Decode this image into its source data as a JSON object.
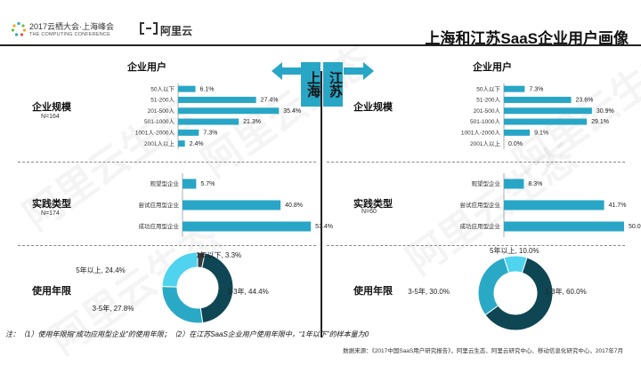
{
  "header": {
    "event_name": "2017云栖大会·上海峰会",
    "event_sub": "THE COMPUTING CONFERENCE",
    "brand": "阿里云",
    "title": "上海和江苏SaaS企业用户画像"
  },
  "watermark": "阿里云生态",
  "regions": {
    "left": "上海",
    "right": "江苏"
  },
  "column_head": "企业用户",
  "sections": {
    "scale": "企业规模",
    "practice": "实践类型",
    "years": "使用年限"
  },
  "colors": {
    "accent": "#29a6c6",
    "dark": "#0f4654",
    "mid": "#2aa9c7",
    "light": "#4fd3ee"
  },
  "chart_data": [
    {
      "id": "sh-scale",
      "type": "bar",
      "orientation": "horizontal",
      "region": "上海",
      "n_label": "N=164",
      "categories": [
        "50人以下",
        "51-200人",
        "201-500人",
        "501-1000人",
        "1001人-2000人",
        "2001人以上"
      ],
      "values": [
        6.1,
        27.4,
        35.4,
        21.3,
        7.3,
        2.4
      ],
      "labels": [
        "6.1%",
        "27.4%",
        "35.4%",
        "21.3%",
        "7.3%",
        "2.4%"
      ]
    },
    {
      "id": "js-scale",
      "type": "bar",
      "orientation": "horizontal",
      "region": "江苏",
      "categories": [
        "50人以下",
        "51-200人",
        "201-500人",
        "501-1000人",
        "1001人-2000人",
        "2001人以上"
      ],
      "values": [
        7.3,
        23.6,
        30.9,
        29.1,
        9.1,
        0.0
      ],
      "labels": [
        "7.3%",
        "23.6%",
        "30.9%",
        "29.1%",
        "9.1%",
        "0.0%"
      ]
    },
    {
      "id": "sh-practice",
      "type": "bar",
      "orientation": "horizontal",
      "region": "上海",
      "n_label": "N=174",
      "categories": [
        "观望型企业",
        "尝试应用型企业",
        "成功应用型企业"
      ],
      "values": [
        5.7,
        40.8,
        53.4
      ],
      "labels": [
        "5.7%",
        "40.8%",
        "53.4%"
      ]
    },
    {
      "id": "js-practice",
      "type": "bar",
      "orientation": "horizontal",
      "region": "江苏",
      "n_label": "N=60",
      "categories": [
        "观望型企业",
        "尝试应用型企业",
        "成功应用型企业"
      ],
      "values": [
        8.3,
        41.7,
        50.0
      ],
      "labels": [
        "8.3%",
        "41.7%",
        "50.0%"
      ]
    },
    {
      "id": "sh-years",
      "type": "pie",
      "variant": "donut",
      "region": "上海",
      "categories": [
        "1年以下",
        "1-3年",
        "3-5年",
        "5年以上"
      ],
      "values": [
        3.3,
        44.4,
        27.8,
        24.4
      ],
      "labels": [
        "1年以下, 3.3%",
        "1-3年, 44.4%",
        "3-5年, 27.8%",
        "5年以上, 24.4%"
      ],
      "colors": [
        "#3a3a3a",
        "#0f4654",
        "#2aa9c7",
        "#4fd3ee"
      ]
    },
    {
      "id": "js-years",
      "type": "pie",
      "variant": "donut",
      "region": "江苏",
      "categories": [
        "5年以上",
        "1-3年",
        "3-5年"
      ],
      "values": [
        10.0,
        60.0,
        30.0
      ],
      "labels": [
        "5年以上, 10.0%",
        "1-3年, 60.0%",
        "3-5年, 30.0%"
      ],
      "colors": [
        "#4fd3ee",
        "#0f4654",
        "#2aa9c7"
      ]
    }
  ],
  "footnote": "注：（1）使用年限指“成功应用型企业”的使用年限；（2）在江苏SaaS企业用户使用年限中，“1年以下”的样本量为0",
  "source": "数据来源：《2017中国SaaS用户研究报告》，阿里云生态、阿里云研究中心、移动信息化研究中心，2017年7月"
}
